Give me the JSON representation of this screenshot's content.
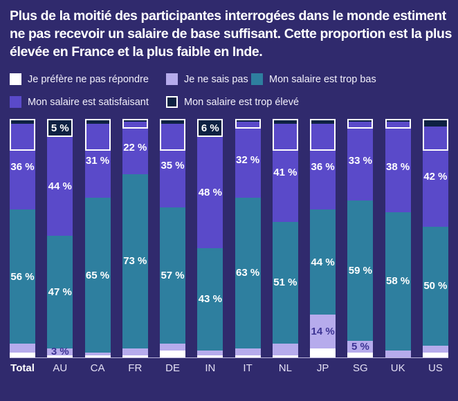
{
  "title": "Plus de la moitié des participantes interrogées dans le monde estiment ne pas recevoir un salaire de base suffisant. Cette proportion est la plus élevée en France et la plus faible en Inde.",
  "colors": {
    "background": "#302a6d",
    "prefer_not_say": "#ffffff",
    "dont_know": "#b6abec",
    "too_low": "#2e7f9f",
    "satisfactory": "#5a4ac9",
    "too_high": "#0d2142",
    "dont_know_label_text": "#3d3494",
    "axis_line": "#bdb7dd"
  },
  "legend": {
    "rows": [
      [
        {
          "label": "Je préfère ne pas répondre",
          "color": "#ffffff",
          "border": false
        },
        {
          "label": "Je ne sais pas",
          "color": "#b6abec",
          "border": false
        },
        {
          "label": "Mon salaire est trop bas",
          "color": "#2e7f9f",
          "border": false
        }
      ],
      [
        {
          "label": "Mon salaire est satisfaisant",
          "color": "#5a4ac9",
          "border": false
        },
        {
          "label": "Mon salaire est trop élevé",
          "color": "#0d2142",
          "border": true
        }
      ]
    ]
  },
  "chart_data": {
    "type": "bar",
    "stacked": true,
    "unit": "%",
    "ylim": [
      0,
      100
    ],
    "grid": false,
    "legend_position": "top",
    "categories": [
      "Total",
      "AU",
      "CA",
      "FR",
      "DE",
      "IN",
      "IT",
      "NL",
      "JP",
      "SG",
      "UK",
      "US"
    ],
    "bold_categories": [
      "Total"
    ],
    "series_top_to_bottom": [
      {
        "key": "too-high",
        "name": "Mon salaire est trop élevé",
        "color": "#0d2142",
        "label_color": "#ffffff",
        "outlined": true,
        "values": [
          2,
          5,
          2,
          1,
          2,
          6,
          1,
          2,
          2,
          1,
          1,
          3
        ],
        "labels": [
          null,
          "5 %",
          null,
          null,
          null,
          "6 %",
          null,
          null,
          null,
          null,
          null,
          null
        ]
      },
      {
        "key": "satisfactory",
        "name": "Mon salaire est satisfaisant",
        "color": "#5a4ac9",
        "label_color": "#ffffff",
        "values": [
          36,
          44,
          31,
          22,
          35,
          48,
          32,
          41,
          36,
          33,
          38,
          42
        ],
        "labels": [
          "36 %",
          "44 %",
          "31 %",
          "22 %",
          "35 %",
          "48 %",
          "32 %",
          "41 %",
          "36 %",
          "33 %",
          "38 %",
          "42 %"
        ]
      },
      {
        "key": "too-low",
        "name": "Mon salaire est trop bas",
        "color": "#2e7f9f",
        "label_color": "#ffffff",
        "values": [
          56,
          47,
          65,
          73,
          57,
          43,
          63,
          51,
          44,
          59,
          58,
          50
        ],
        "labels": [
          "56 %",
          "47 %",
          "65 %",
          "73 %",
          "57 %",
          "43 %",
          "63 %",
          "51 %",
          "44 %",
          "59 %",
          "58 %",
          "50 %"
        ]
      },
      {
        "key": "dont-know",
        "name": "Je ne sais pas",
        "color": "#b6abec",
        "label_color": "#3d3494",
        "values": [
          4,
          3,
          1,
          3,
          3,
          2,
          3,
          5,
          14,
          5,
          3,
          3
        ],
        "labels": [
          null,
          "3 %",
          null,
          null,
          null,
          null,
          null,
          null,
          "14 %",
          "5 %",
          null,
          null
        ]
      },
      {
        "key": "prefer-not-say",
        "name": "Je préfère ne pas répondre",
        "color": "#ffffff",
        "label_color": "#3d3494",
        "values": [
          2,
          1,
          1,
          1,
          3,
          1,
          1,
          1,
          4,
          2,
          0,
          2
        ],
        "labels": [
          null,
          null,
          null,
          null,
          null,
          null,
          null,
          null,
          null,
          null,
          null,
          null
        ]
      }
    ]
  }
}
